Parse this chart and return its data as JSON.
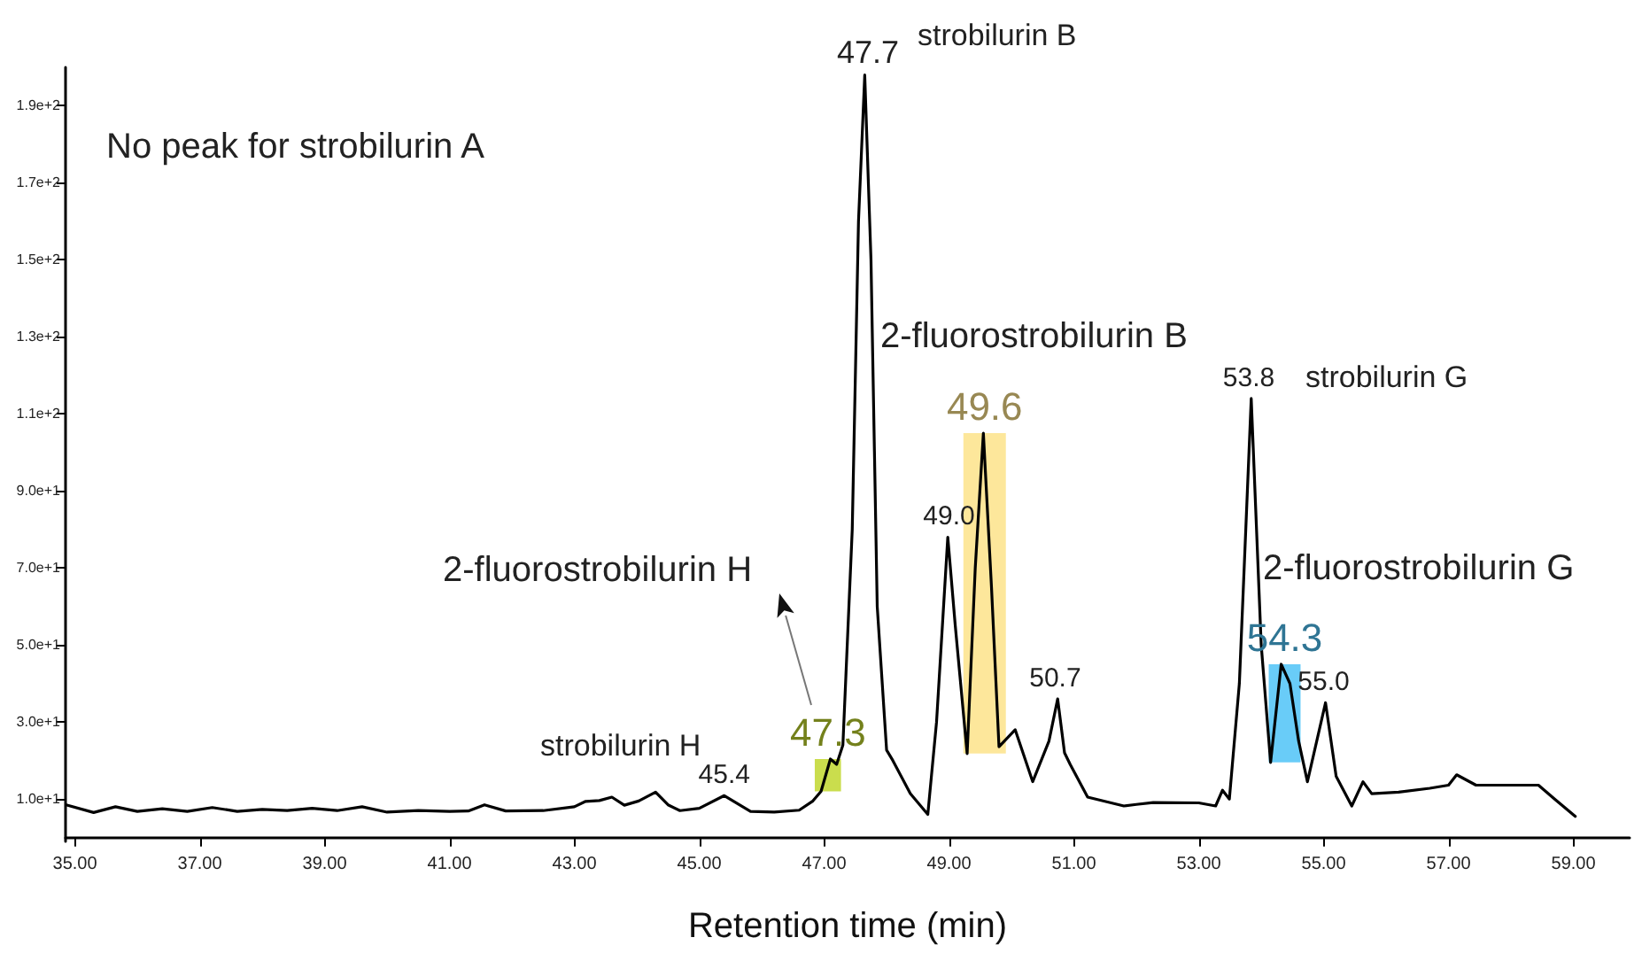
{
  "chart_data": {
    "type": "line",
    "xlabel": "Retention time (min)",
    "x": [
      34.86,
      35.3,
      35.65,
      36.0,
      36.4,
      36.8,
      37.2,
      37.6,
      38.0,
      38.4,
      38.8,
      39.2,
      39.6,
      40.0,
      40.5,
      41.0,
      41.3,
      41.56,
      41.9,
      42.5,
      43.0,
      43.18,
      43.4,
      43.6,
      43.8,
      44.03,
      44.3,
      44.5,
      44.69,
      45.0,
      45.4,
      45.82,
      46.2,
      46.6,
      46.82,
      46.95,
      47.1,
      47.2,
      47.3,
      47.45,
      47.55,
      47.65,
      47.75,
      47.85,
      48.0,
      48.1,
      48.38,
      48.66,
      48.8,
      48.98,
      49.1,
      49.29,
      49.42,
      49.55,
      49.68,
      49.8,
      50.06,
      50.34,
      50.6,
      50.74,
      50.85,
      50.94,
      51.22,
      51.8,
      52.0,
      52.27,
      53.0,
      53.27,
      53.38,
      53.49,
      53.65,
      53.84,
      54.0,
      54.15,
      54.32,
      54.46,
      54.6,
      54.74,
      55.03,
      55.2,
      55.45,
      55.63,
      55.77,
      56.2,
      56.7,
      57.0,
      57.13,
      57.44,
      58.0,
      58.44,
      58.7,
      59.03
    ],
    "series": [
      {
        "color": "#000000",
        "values": [
          8.5,
          6.5,
          8.0,
          6.8,
          7.5,
          6.8,
          7.8,
          6.8,
          7.3,
          7.0,
          7.6,
          7.0,
          8.0,
          6.6,
          7.0,
          6.8,
          6.9,
          8.5,
          6.9,
          7.0,
          8.0,
          9.4,
          9.6,
          10.5,
          8.4,
          9.5,
          11.8,
          8.5,
          7.0,
          7.6,
          10.9,
          6.8,
          6.6,
          7.1,
          9.5,
          12,
          20.4,
          19,
          24,
          80,
          160,
          198,
          150,
          60,
          22.7,
          20,
          11.4,
          6.0,
          30,
          78,
          55,
          21.8,
          70,
          105,
          65,
          23.6,
          28,
          14.5,
          25,
          36,
          22,
          19,
          10.5,
          8.2,
          8.6,
          9.1,
          9.0,
          8.2,
          12.3,
          10,
          40,
          114,
          50,
          19.5,
          45,
          40,
          25,
          14.5,
          35,
          15.9,
          8.2,
          14.5,
          11.4,
          11.8,
          12.8,
          13.6,
          16.3,
          13.6,
          13.6,
          13.6,
          10,
          5.5
        ]
      }
    ],
    "xlim": [
      34.85,
      59.9
    ],
    "xticks": [
      {
        "value": 35,
        "label": "35.00"
      },
      {
        "value": 37,
        "label": "37.00"
      },
      {
        "value": 39,
        "label": "39.00"
      },
      {
        "value": 41,
        "label": "41.00"
      },
      {
        "value": 43,
        "label": "43.00"
      },
      {
        "value": 45,
        "label": "45.00"
      },
      {
        "value": 47,
        "label": "47.00"
      },
      {
        "value": 49,
        "label": "49.00"
      },
      {
        "value": 51,
        "label": "51.00"
      },
      {
        "value": 53,
        "label": "53.00"
      },
      {
        "value": 55,
        "label": "55.00"
      },
      {
        "value": 57,
        "label": "57.00"
      },
      {
        "value": 59,
        "label": "59.00"
      }
    ],
    "ylim": [
      -1,
      200
    ],
    "yticks": [
      {
        "value": 10,
        "label": "1.0e+1"
      },
      {
        "value": 30,
        "label": "3.0e+1"
      },
      {
        "value": 50,
        "label": "5.0e+1"
      },
      {
        "value": 70,
        "label": "7.0e+1"
      },
      {
        "value": 90,
        "label": "9.0e+1"
      },
      {
        "value": 110,
        "label": "1.1e+2"
      },
      {
        "value": 130,
        "label": "1.3e+2"
      },
      {
        "value": 150,
        "label": "1.5e+2"
      },
      {
        "value": 170,
        "label": "1.7e+2"
      },
      {
        "value": 190,
        "label": "1.9e+2"
      }
    ],
    "bands": [
      {
        "axis": "x",
        "from": 46.85,
        "to": 47.27,
        "label": "47.3",
        "color": "#c1d72e"
      },
      {
        "axis": "x",
        "from": 49.23,
        "to": 49.91,
        "label": "49.6",
        "color": "#fde38a"
      },
      {
        "axis": "x",
        "from": 54.12,
        "to": 54.63,
        "label": "54.3",
        "color": "#4fc3f7"
      }
    ],
    "annotations": [
      "No peak for strobilurin A",
      "strobilurin B",
      "2-fluorostrobilurin B",
      "strobilurin G",
      "2-fluorostrobilurin G",
      "2-fluorostrobilurin H",
      "strobilurin H",
      {
        "text": "47.7",
        "x": 47.7,
        "y": 198
      },
      {
        "text": "49.0",
        "x": 49.0,
        "y": 78
      },
      {
        "text": "50.7",
        "x": 50.7,
        "y": 36
      },
      {
        "text": "53.8",
        "x": 53.8,
        "y": 114
      },
      {
        "text": "55.0",
        "x": 55.0,
        "y": 35
      },
      {
        "text": "45.4",
        "x": 45.4,
        "y": 11
      }
    ],
    "grid": false,
    "marker": "none",
    "line_style": "solid"
  }
}
